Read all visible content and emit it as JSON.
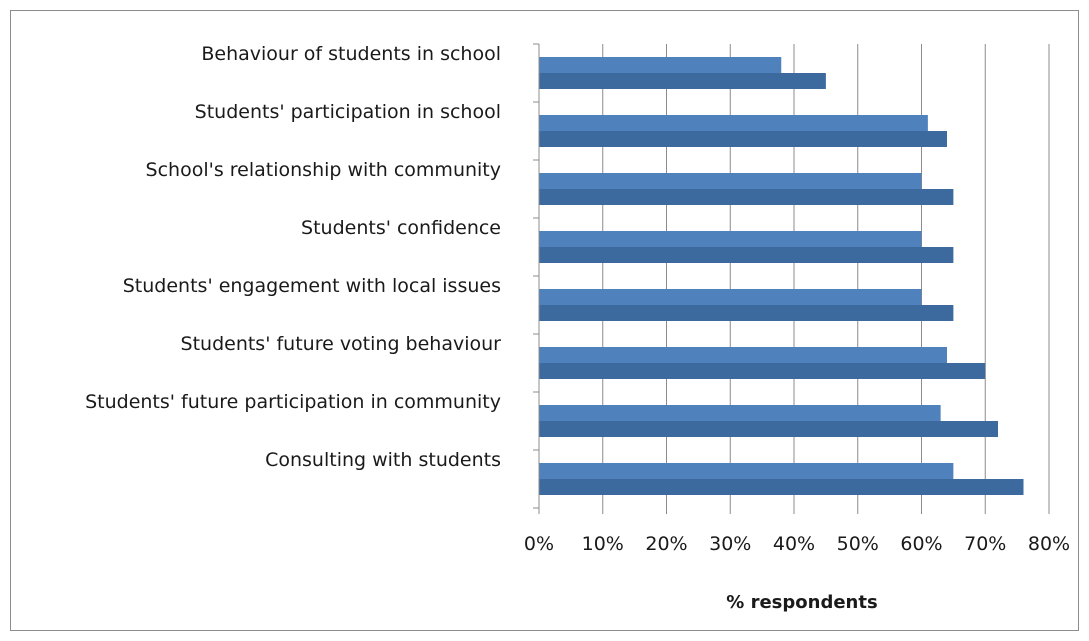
{
  "chart_data": {
    "type": "bar",
    "orientation": "horizontal",
    "title": "",
    "xlabel": "% respondents",
    "ylabel": "",
    "xlim": [
      0,
      0.8
    ],
    "x_ticks": [
      0,
      0.1,
      0.2,
      0.3,
      0.4,
      0.5,
      0.6,
      0.7,
      0.8
    ],
    "x_tick_labels": [
      "0%",
      "10%",
      "20%",
      "30%",
      "40%",
      "50%",
      "60%",
      "70%",
      "80%"
    ],
    "grid": "vertical",
    "legend": "none",
    "categories": [
      "Behaviour of students in school",
      "Students' participation in school",
      "School's relationship with community",
      "Students' confidence",
      "Students' engagement with local issues",
      "Students' future voting behaviour",
      "Students' future participation in community",
      "Consulting with students"
    ],
    "series": [
      {
        "color": "#4f81bd",
        "values": [
          0.38,
          0.61,
          0.6,
          0.6,
          0.6,
          0.64,
          0.63,
          0.65
        ]
      },
      {
        "color": "#3d6a9e",
        "values": [
          0.45,
          0.64,
          0.65,
          0.65,
          0.65,
          0.7,
          0.72,
          0.76
        ]
      }
    ]
  }
}
